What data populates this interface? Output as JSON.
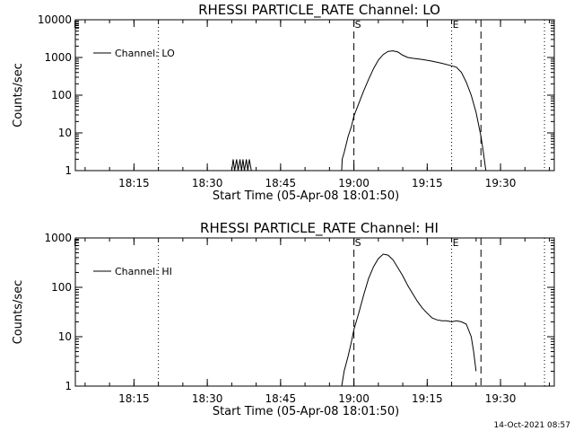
{
  "footer": {
    "timestamp": "14-Oct-2021 08:57"
  },
  "chart_data": [
    {
      "type": "line",
      "title": "RHESSI PARTICLE_RATE Channel: LO",
      "xlabel": "Start Time (05-Apr-08 18:01:50)",
      "ylabel": "Counts/sec",
      "y_scale": "log",
      "ylim": [
        1,
        10000
      ],
      "xlim": [
        "18:03",
        "19:41"
      ],
      "x_ticks": [
        "18:15",
        "18:30",
        "18:45",
        "19:00",
        "19:15",
        "19:30"
      ],
      "y_ticks": [
        "1",
        "10",
        "100",
        "1000",
        "10000"
      ],
      "legend": {
        "position": "top-left",
        "entries": [
          "Channel: LO"
        ]
      },
      "annotations": [
        "S",
        "E"
      ],
      "vertical_lines_dotted": [
        "18:20",
        "19:20",
        "19:39"
      ],
      "vertical_lines_dashed": [
        "19:00",
        "19:26"
      ],
      "annotation_positions": [
        {
          "text": "S",
          "x": "19:00"
        },
        {
          "text": "E",
          "x": "19:20"
        }
      ],
      "series": [
        {
          "name": "Channel: LO",
          "points": [
            [
              "18:35.0",
              1
            ],
            [
              "18:35.3",
              2
            ],
            [
              "18:35.6",
              1
            ],
            [
              "18:36.0",
              2
            ],
            [
              "18:36.3",
              1
            ],
            [
              "18:36.7",
              2
            ],
            [
              "18:37.0",
              1
            ],
            [
              "18:37.3",
              2
            ],
            [
              "18:37.6",
              1
            ],
            [
              "18:38.0",
              2
            ],
            [
              "18:38.3",
              1
            ],
            [
              "18:38.6",
              2
            ],
            [
              "18:39.0",
              1
            ],
            [
              "18:57.5",
              1
            ],
            [
              "18:57.6",
              2
            ],
            [
              "18:58.0",
              3
            ],
            [
              "18:58.8",
              8
            ],
            [
              "18:59.5",
              15
            ],
            [
              "19:00.0",
              28
            ],
            [
              "19:01.0",
              60
            ],
            [
              "19:02.0",
              130
            ],
            [
              "19:03.0",
              260
            ],
            [
              "19:04.0",
              500
            ],
            [
              "19:05.0",
              850
            ],
            [
              "19:06.0",
              1200
            ],
            [
              "19:07.0",
              1450
            ],
            [
              "19:08.0",
              1500
            ],
            [
              "19:09.0",
              1400
            ],
            [
              "19:10.0",
              1150
            ],
            [
              "19:11.0",
              1000
            ],
            [
              "19:12.0",
              950
            ],
            [
              "19:14.0",
              880
            ],
            [
              "19:16.0",
              800
            ],
            [
              "19:18.0",
              700
            ],
            [
              "19:20.0",
              600
            ],
            [
              "19:21.0",
              550
            ],
            [
              "19:22.0",
              400
            ],
            [
              "19:23.0",
              220
            ],
            [
              "19:24.0",
              100
            ],
            [
              "19:25.0",
              35
            ],
            [
              "19:26.0",
              8
            ],
            [
              "19:26.5",
              3
            ],
            [
              "19:27.0",
              1
            ]
          ]
        }
      ]
    },
    {
      "type": "line",
      "title": "RHESSI PARTICLE_RATE Channel: HI",
      "xlabel": "Start Time (05-Apr-08 18:01:50)",
      "ylabel": "Counts/sec",
      "y_scale": "log",
      "ylim": [
        1,
        1000
      ],
      "xlim": [
        "18:03",
        "19:41"
      ],
      "x_ticks": [
        "18:15",
        "18:30",
        "18:45",
        "19:00",
        "19:15",
        "19:30"
      ],
      "y_ticks": [
        "1",
        "10",
        "100",
        "1000"
      ],
      "legend": {
        "position": "top-left",
        "entries": [
          "Channel: HI"
        ]
      },
      "annotations": [
        "S",
        "E"
      ],
      "vertical_lines_dotted": [
        "18:20",
        "19:20",
        "19:39"
      ],
      "vertical_lines_dashed": [
        "19:00",
        "19:26"
      ],
      "annotation_positions": [
        {
          "text": "S",
          "x": "19:00"
        },
        {
          "text": "E",
          "x": "19:20"
        }
      ],
      "series": [
        {
          "name": "Channel: HI",
          "points": [
            [
              "18:57.5",
              1
            ],
            [
              "18:58.0",
              2
            ],
            [
              "18:58.8",
              4
            ],
            [
              "18:59.5",
              8
            ],
            [
              "19:00.0",
              14
            ],
            [
              "19:01.0",
              30
            ],
            [
              "19:02.0",
              70
            ],
            [
              "19:03.0",
              150
            ],
            [
              "19:04.0",
              260
            ],
            [
              "19:05.0",
              380
            ],
            [
              "19:06.0",
              470
            ],
            [
              "19:07.0",
              450
            ],
            [
              "19:08.0",
              360
            ],
            [
              "19:09.0",
              250
            ],
            [
              "19:10.0",
              170
            ],
            [
              "19:11.0",
              110
            ],
            [
              "19:12.0",
              75
            ],
            [
              "19:13.0",
              52
            ],
            [
              "19:14.0",
              38
            ],
            [
              "19:15.0",
              30
            ],
            [
              "19:16.0",
              24
            ],
            [
              "19:17.0",
              22
            ],
            [
              "19:18.0",
              21
            ],
            [
              "19:19.0",
              21
            ],
            [
              "19:20.0",
              20
            ],
            [
              "19:21.0",
              21
            ],
            [
              "19:22.0",
              20
            ],
            [
              "19:23.0",
              18
            ],
            [
              "19:24.0",
              10
            ],
            [
              "19:24.5",
              5
            ],
            [
              "19:25.0",
              2
            ]
          ]
        }
      ]
    }
  ]
}
